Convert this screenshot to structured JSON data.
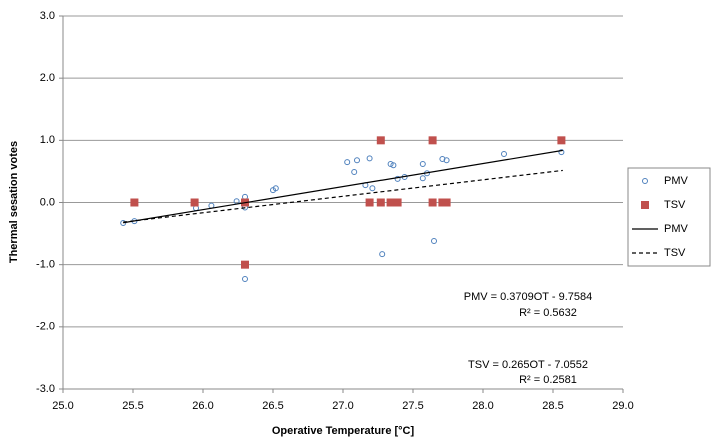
{
  "chart_data": {
    "type": "scatter",
    "x_label": "Operative Temperature [°C]",
    "y_label": "Thermal sesation votes",
    "xlim": [
      25.0,
      29.0
    ],
    "xticks": [
      {
        "value": 25,
        "label": "25.0"
      },
      {
        "value": 25.5,
        "label": "25.5"
      },
      {
        "value": 26,
        "label": "26.0"
      },
      {
        "value": 26.5,
        "label": "26.5"
      },
      {
        "value": 27,
        "label": "27.0"
      },
      {
        "value": 27.5,
        "label": "27.5"
      },
      {
        "value": 28,
        "label": "28.0"
      },
      {
        "value": 28.5,
        "label": "28.5"
      },
      {
        "value": 29,
        "label": "29.0"
      }
    ],
    "ylim": [
      -3.0,
      3.0
    ],
    "yticks": [
      {
        "value": -3,
        "label": "-3.0"
      },
      {
        "value": -2,
        "label": "-2.0"
      },
      {
        "value": -1,
        "label": "-1.0"
      },
      {
        "value": 0,
        "label": "0.0"
      },
      {
        "value": 1,
        "label": "1.0"
      },
      {
        "value": 2,
        "label": "2.0"
      },
      {
        "value": 3,
        "label": "3.0"
      }
    ],
    "grid": true,
    "legend": "right",
    "series": [
      {
        "name": "PMV",
        "type": "scatter",
        "marker": "circle",
        "color": "#4f81bd",
        "x": [
          25.43,
          25.51,
          25.95,
          26.06,
          26.24,
          26.3,
          26.3,
          26.3,
          26.5,
          26.52,
          27.03,
          27.1,
          27.08,
          27.16,
          27.19,
          27.21,
          27.28,
          27.34,
          27.36,
          27.39,
          27.44,
          27.57,
          27.57,
          27.6,
          27.65,
          27.71,
          27.74,
          28.15,
          28.56
        ],
        "values": [
          -0.33,
          -0.3,
          -0.09,
          -0.05,
          0.02,
          0.09,
          -0.08,
          -1.23,
          0.2,
          0.23,
          0.65,
          0.68,
          0.49,
          0.28,
          0.71,
          0.23,
          -0.83,
          0.62,
          0.6,
          0.38,
          0.41,
          0.62,
          0.39,
          0.47,
          -0.62,
          0.7,
          0.68,
          0.78,
          0.81
        ]
      },
      {
        "name": "TSV",
        "type": "scatter",
        "marker": "square",
        "color": "#c0504d",
        "x": [
          25.51,
          25.94,
          26.3,
          26.3,
          27.19,
          27.27,
          27.27,
          27.34,
          27.39,
          27.64,
          27.64,
          27.71,
          27.74,
          28.56
        ],
        "values": [
          0,
          0,
          0,
          -1,
          0,
          1,
          0,
          0,
          0,
          1,
          0,
          0,
          0,
          1
        ]
      },
      {
        "name": "PMV",
        "type": "line",
        "dash": false,
        "color": "#000000",
        "x": [
          25.43,
          28.57
        ],
        "values": [
          -0.326,
          0.838
        ]
      },
      {
        "name": "TSV",
        "type": "line",
        "dash": true,
        "color": "#000000",
        "x": [
          25.43,
          28.57
        ],
        "values": [
          -0.316,
          0.516
        ]
      }
    ],
    "annotations": [
      "PMV = 0.3709OT - 9.7584",
      "R² = 0.5632",
      "TSV = 0.265OT - 7.0552",
      "R² = 0.2581"
    ]
  }
}
